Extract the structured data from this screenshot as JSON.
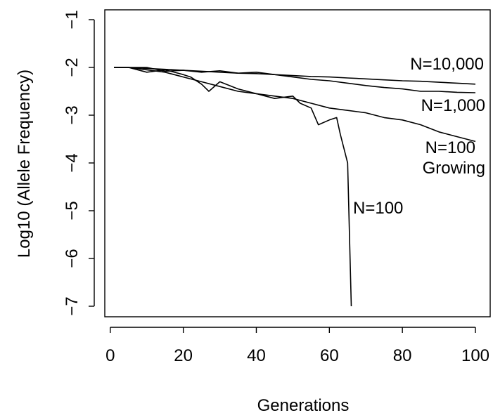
{
  "chart_data": {
    "type": "line",
    "title": "",
    "xlabel": "Generations",
    "ylabel": "Log10 (Allele Frequency)",
    "xlim": [
      1,
      100
    ],
    "ylim": [
      -7,
      -1
    ],
    "x_ticks": [
      0,
      20,
      40,
      60,
      80,
      100
    ],
    "y_ticks": [
      -7,
      -6,
      -5,
      -4,
      -3,
      -2,
      -1
    ],
    "x_tick_labels": [
      "0",
      "20",
      "40",
      "60",
      "80",
      "100"
    ],
    "y_tick_labels": [
      "−7",
      "−6",
      "−5",
      "−4",
      "−3",
      "−2",
      "−1"
    ],
    "grid": false,
    "legend": "none",
    "series": [
      {
        "label": "N=10,000",
        "x": [
          1,
          5,
          10,
          15,
          20,
          25,
          30,
          35,
          40,
          45,
          50,
          55,
          60,
          65,
          70,
          75,
          80,
          85,
          90,
          95,
          100
        ],
        "values": [
          -2.0,
          -2.0,
          -2.02,
          -2.04,
          -2.06,
          -2.08,
          -2.1,
          -2.12,
          -2.13,
          -2.15,
          -2.17,
          -2.19,
          -2.2,
          -2.22,
          -2.24,
          -2.26,
          -2.28,
          -2.29,
          -2.31,
          -2.33,
          -2.35
        ]
      },
      {
        "label": "N=1,000",
        "x": [
          1,
          5,
          10,
          15,
          20,
          25,
          30,
          35,
          40,
          45,
          50,
          55,
          60,
          65,
          70,
          75,
          80,
          85,
          90,
          95,
          100
        ],
        "values": [
          -2.0,
          -2.0,
          -2.0,
          -2.08,
          -2.06,
          -2.1,
          -2.07,
          -2.12,
          -2.1,
          -2.15,
          -2.2,
          -2.25,
          -2.28,
          -2.33,
          -2.38,
          -2.42,
          -2.45,
          -2.5,
          -2.5,
          -2.52,
          -2.53
        ]
      },
      {
        "label": "N=100 Growing",
        "x": [
          1,
          5,
          10,
          15,
          20,
          25,
          30,
          35,
          40,
          45,
          50,
          55,
          60,
          65,
          70,
          75,
          80,
          85,
          90,
          95,
          100
        ],
        "values": [
          -2.0,
          -2.0,
          -2.05,
          -2.1,
          -2.2,
          -2.3,
          -2.4,
          -2.5,
          -2.55,
          -2.6,
          -2.65,
          -2.75,
          -2.85,
          -2.9,
          -2.95,
          -3.05,
          -3.1,
          -3.2,
          -3.35,
          -3.45,
          -3.55
        ]
      },
      {
        "label": "N=100",
        "x": [
          1,
          5,
          10,
          15,
          20,
          22,
          25,
          27,
          30,
          35,
          40,
          45,
          50,
          52,
          55,
          57,
          60,
          62,
          63,
          64,
          65,
          66
        ],
        "values": [
          -2.0,
          -2.0,
          -2.1,
          -2.05,
          -2.15,
          -2.2,
          -2.35,
          -2.5,
          -2.3,
          -2.45,
          -2.55,
          -2.65,
          -2.6,
          -2.75,
          -2.85,
          -3.2,
          -3.1,
          -3.05,
          -3.4,
          -3.7,
          -4.0,
          -7.0
        ]
      }
    ]
  }
}
